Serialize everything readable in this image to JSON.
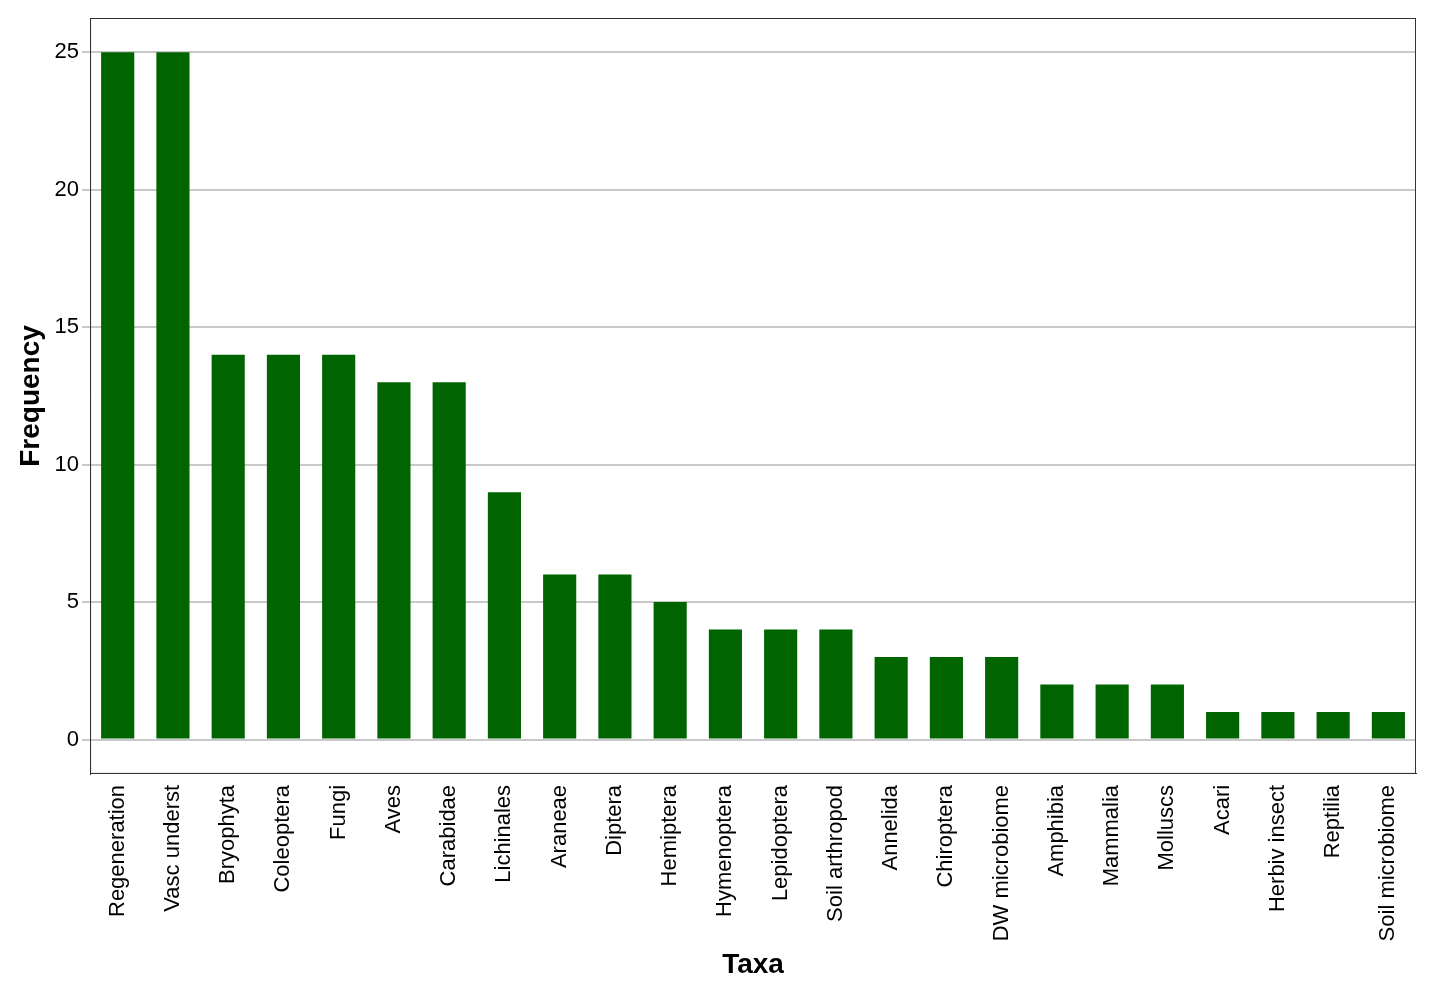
{
  "chart_data": {
    "type": "bar",
    "x_label": "Taxa",
    "y_label": "Frequency",
    "categories": [
      "Regeneration",
      "Vasc underst",
      "Bryophyta",
      "Coleoptera",
      "Fungi",
      "Aves",
      "Carabidae",
      "Lichinales",
      "Araneae",
      "Diptera",
      "Hemiptera",
      "Hymenoptera",
      "Lepidoptera",
      "Soil arthropod",
      "Annelida",
      "Chiroptera",
      "DW microbiome",
      "Amphibia",
      "Mammalia",
      "Molluscs",
      "Acari",
      "Herbiv insect",
      "Reptilia",
      "Soil microbiome"
    ],
    "values": [
      25,
      25,
      14,
      14,
      14,
      13,
      13,
      9,
      6,
      6,
      5,
      4,
      4,
      4,
      3,
      3,
      3,
      2,
      2,
      2,
      1,
      1,
      1,
      1
    ],
    "color": "#006400",
    "ylim": [
      -1.25,
      26.25
    ],
    "yticks": [
      0,
      5,
      10,
      15,
      20,
      25
    ],
    "grid": true
  }
}
